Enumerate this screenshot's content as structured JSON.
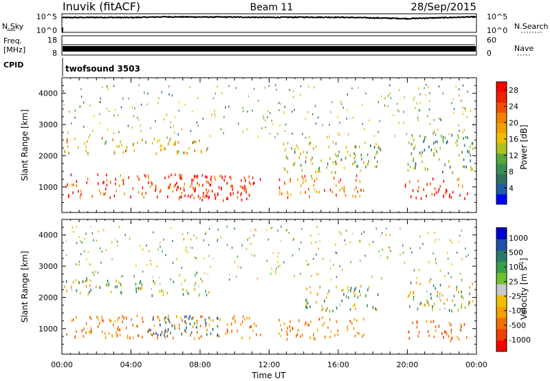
{
  "header": {
    "station": "Inuvik (fitACF)",
    "beam": "Beam 11",
    "date": "28/Sep/2015"
  },
  "noise_panel": {
    "left_label": "N.Sky",
    "right_label": "N.Search",
    "ytick_top": "10^5",
    "ytick_bottom": "10^0",
    "rtick_top": "10^5",
    "rtick_bottom": "10^0"
  },
  "freq_panel": {
    "left_label_1": "Freq.",
    "left_label_2": "[MHz]",
    "ytick_top": "18",
    "ytick_bottom": "8",
    "right_label": "Nave",
    "rtick_top": "60",
    "rtick_bottom": "0"
  },
  "cpid": {
    "label": "CPID",
    "program": "twofsound 3503"
  },
  "colors": {
    "power_scale": [
      "#0000ff",
      "#1f5fa8",
      "#2f6f5f",
      "#3a8f55",
      "#5aa83a",
      "#b0c020",
      "#f0c000",
      "#f0a000",
      "#f08000",
      "#f05000",
      "#f02000",
      "#ff0000"
    ],
    "velocity_scale": [
      "#0000d0",
      "#1f4fa8",
      "#2a7a6a",
      "#3a9f4a",
      "#70c030",
      "#c8c8c8",
      "#f0c000",
      "#f0a000",
      "#f07000",
      "#f04000",
      "#ff0000"
    ]
  },
  "chart_data": [
    {
      "type": "line",
      "title": "N.Sky / N.Search",
      "yscale": "log",
      "ylim": [
        1,
        100000
      ],
      "x": [
        "00:00",
        "02:00",
        "04:00",
        "06:00",
        "08:00",
        "10:00",
        "12:00",
        "14:00",
        "16:00",
        "18:00",
        "20:00",
        "22:00",
        "00:00"
      ],
      "series": [
        {
          "name": "N.Sky",
          "values": [
            12000,
            14000,
            12500,
            20000,
            18000,
            17000,
            14000,
            16000,
            15000,
            10000,
            6000,
            11000,
            20000
          ]
        }
      ]
    },
    {
      "type": "line",
      "title": "Freq. / Nave",
      "ylim": [
        8,
        18
      ],
      "x": [
        "00:00",
        "12:00",
        "00:00"
      ],
      "series": [
        {
          "name": "Freq.",
          "values": [
            10.5,
            10.5,
            10.5
          ]
        }
      ]
    },
    {
      "type": "heatmap",
      "title": "Power",
      "ylabel": "Slant Range [km]",
      "yticks": [
        "1000",
        "2000",
        "3000",
        "4000"
      ],
      "ylim": [
        180,
        4500
      ],
      "xlabel": "Time UT",
      "xticks": [
        "00:00",
        "04:00",
        "08:00",
        "12:00",
        "16:00",
        "20:00",
        "00:00"
      ],
      "colorbar": {
        "label": "Power [dB]",
        "ticks": [
          "4",
          "8",
          "12",
          "16",
          "20",
          "24",
          "28"
        ]
      },
      "regions": [
        {
          "t0": 0.2,
          "t1": 11.5,
          "r0": 700,
          "r1": 1450,
          "value": 26
        },
        {
          "t0": 6.5,
          "t1": 11.0,
          "r0": 600,
          "r1": 1400,
          "value": 29
        },
        {
          "t0": 0.0,
          "t1": 8.5,
          "r0": 2100,
          "r1": 2600,
          "value": 18
        },
        {
          "t0": 12.5,
          "t1": 17.5,
          "r0": 700,
          "r1": 1400,
          "value": 22
        },
        {
          "t0": 12.8,
          "t1": 18.5,
          "r0": 1500,
          "r1": 2500,
          "value": 14
        },
        {
          "t0": 19.8,
          "t1": 23.5,
          "r0": 650,
          "r1": 1300,
          "value": 27
        },
        {
          "t0": 20.0,
          "t1": 23.8,
          "r0": 1500,
          "r1": 2700,
          "value": 12
        }
      ]
    },
    {
      "type": "heatmap",
      "title": "Velocity",
      "ylabel": "Slant Range [km]",
      "yticks": [
        "1000",
        "2000",
        "3000",
        "4000"
      ],
      "ylim": [
        180,
        4500
      ],
      "xlabel": "Time UT",
      "xticks": [
        "00:00",
        "04:00",
        "08:00",
        "12:00",
        "16:00",
        "20:00",
        "00:00"
      ],
      "colorbar": {
        "label": "Velocity [m s^-1]",
        "ticks": [
          "1000",
          "500",
          "100",
          "25",
          "-25",
          "-100",
          "-500",
          "-1000"
        ]
      },
      "regions": [
        {
          "t0": 0.2,
          "t1": 11.5,
          "r0": 700,
          "r1": 1450,
          "value": -300
        },
        {
          "t0": 5.0,
          "t1": 9.0,
          "r0": 800,
          "r1": 1450,
          "value": 300
        },
        {
          "t0": 0.0,
          "t1": 8.5,
          "r0": 2100,
          "r1": 2600,
          "value": 0
        },
        {
          "t0": 12.5,
          "t1": 17.5,
          "r0": 700,
          "r1": 1400,
          "value": -300
        },
        {
          "t0": 14.0,
          "t1": 18.5,
          "r0": 1600,
          "r1": 2400,
          "value": 0
        },
        {
          "t0": 19.8,
          "t1": 23.5,
          "r0": 650,
          "r1": 1300,
          "value": -400
        },
        {
          "t0": 20.0,
          "t1": 23.8,
          "r0": 1600,
          "r1": 2600,
          "value": 0
        }
      ]
    }
  ],
  "axis": {
    "xlabel": "Time UT",
    "xticks": [
      "00:00",
      "04:00",
      "08:00",
      "12:00",
      "16:00",
      "20:00",
      "00:00"
    ],
    "ylabel": "Slant Range [km]",
    "yticks": [
      "1000",
      "2000",
      "3000",
      "4000"
    ]
  },
  "colorbars": {
    "power_label": "Power [dB]",
    "power_ticks": [
      "4",
      "8",
      "12",
      "16",
      "20",
      "24",
      "28"
    ],
    "velocity_label": "Velocity",
    "velocity_unit": "[m s",
    "velocity_unit_exp": "-1",
    "velocity_unit_end": "]",
    "velocity_ticks": [
      "1000",
      "500",
      "100",
      "25",
      "-25",
      "-100",
      "-500",
      "-1000"
    ]
  }
}
